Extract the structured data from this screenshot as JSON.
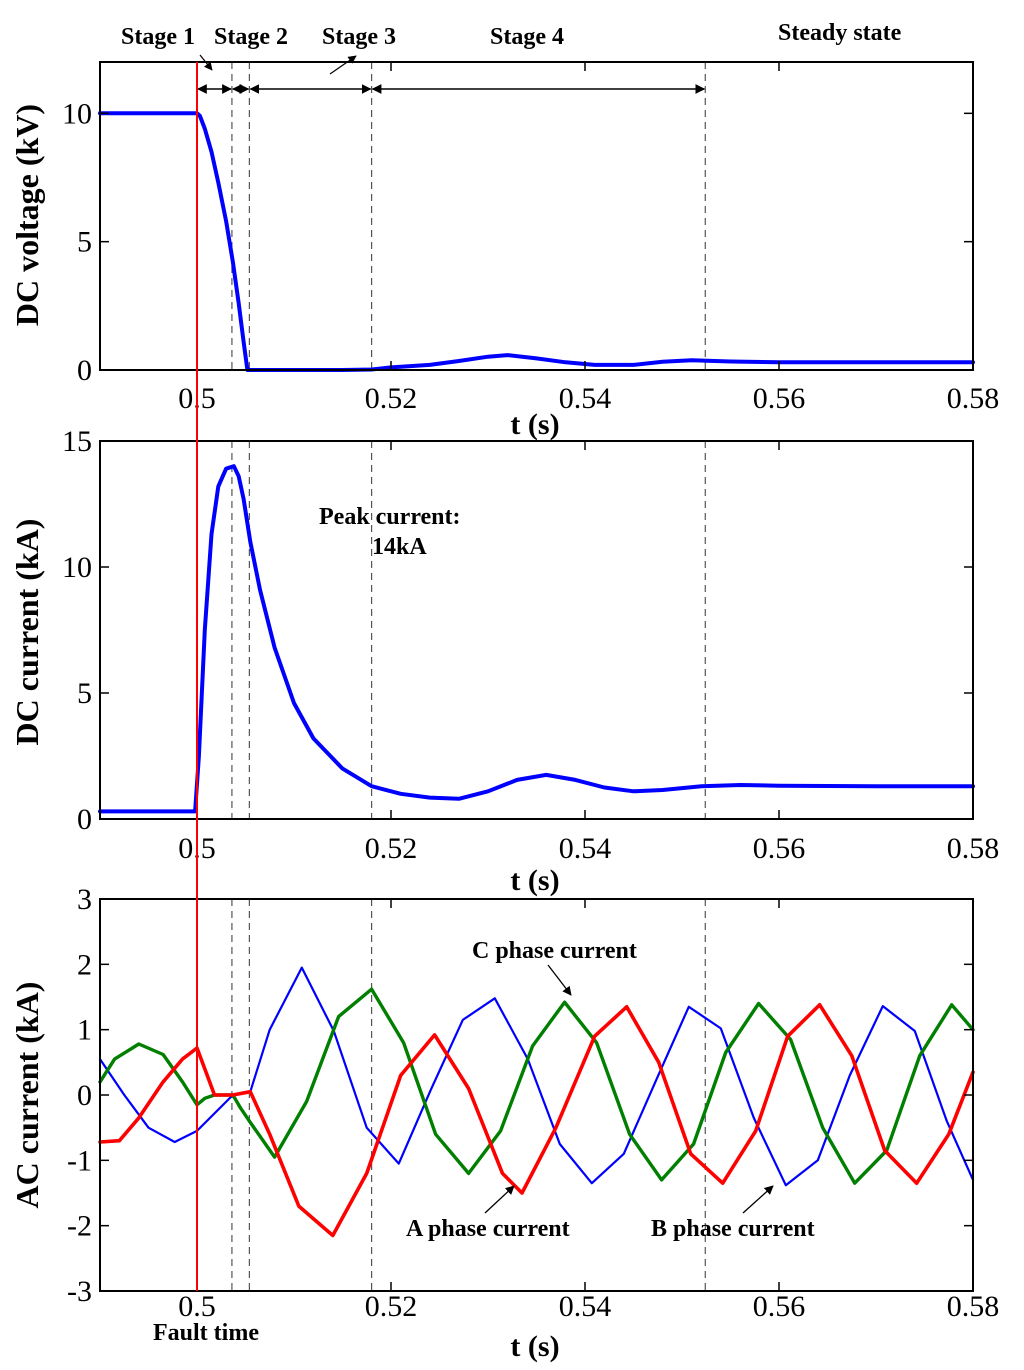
{
  "chart_data": [
    {
      "type": "line",
      "id": "dc-voltage",
      "ylabel": "DC voltage (kV)",
      "xlabel": "t (s)",
      "xlim": [
        0.49,
        0.58
      ],
      "ylim": [
        0,
        12
      ],
      "xticks": [
        0.5,
        0.52,
        0.54,
        0.56,
        0.58
      ],
      "yticks": [
        0,
        5,
        10
      ],
      "xtick_labels": [
        "0.5",
        "0.52",
        "0.54",
        "0.56",
        "0.58"
      ],
      "ytick_labels": [
        "0",
        "5",
        "10"
      ],
      "series": [
        {
          "name": "DC voltage",
          "color": "#0000FF",
          "x": [
            0.49,
            0.5,
            0.5003,
            0.5008,
            0.5015,
            0.5022,
            0.503,
            0.5037,
            0.5043,
            0.5048,
            0.5052,
            0.507,
            0.515,
            0.518,
            0.52,
            0.524,
            0.527,
            0.53,
            0.532,
            0.535,
            0.538,
            0.541,
            0.545,
            0.548,
            0.551,
            0.555,
            0.56,
            0.57,
            0.58
          ],
          "y": [
            10,
            10,
            9.9,
            9.4,
            8.5,
            7.3,
            5.8,
            4.2,
            2.6,
            1.1,
            0,
            0,
            0,
            0.02,
            0.1,
            0.2,
            0.35,
            0.52,
            0.58,
            0.45,
            0.3,
            0.2,
            0.2,
            0.32,
            0.38,
            0.33,
            0.3,
            0.3,
            0.3
          ]
        }
      ],
      "vlines_dashed": [
        0.5036,
        0.5054,
        0.518,
        0.5524
      ],
      "vline_fault": 0.5,
      "stage_arrows": [
        [
          0.5,
          0.5036
        ],
        [
          0.5036,
          0.5054
        ],
        [
          0.5054,
          0.518
        ],
        [
          0.518,
          0.5524
        ]
      ],
      "annotations": [
        "Stage 1",
        "Stage 2",
        "Stage 3",
        "Stage 4",
        "Steady state"
      ]
    },
    {
      "type": "line",
      "id": "dc-current",
      "ylabel": "DC current (kA)",
      "xlabel": "t (s)",
      "xlim": [
        0.49,
        0.58
      ],
      "ylim": [
        0,
        15
      ],
      "xticks": [
        0.5,
        0.52,
        0.54,
        0.56,
        0.58
      ],
      "yticks": [
        0,
        5,
        10,
        15
      ],
      "xtick_labels": [
        "0.5",
        "0.52",
        "0.54",
        "0.56",
        "0.58"
      ],
      "ytick_labels": [
        "0",
        "5",
        "10",
        "15"
      ],
      "series": [
        {
          "name": "DC current",
          "color": "#0000FF",
          "x": [
            0.49,
            0.4998,
            0.5002,
            0.5008,
            0.5015,
            0.5022,
            0.503,
            0.5038,
            0.5043,
            0.5048,
            0.5055,
            0.5065,
            0.508,
            0.51,
            0.512,
            0.515,
            0.518,
            0.521,
            0.524,
            0.527,
            0.53,
            0.533,
            0.536,
            0.539,
            0.542,
            0.545,
            0.548,
            0.552,
            0.556,
            0.56,
            0.57,
            0.58
          ],
          "y": [
            0.3,
            0.3,
            2.5,
            7.5,
            11.3,
            13.2,
            13.9,
            14.0,
            13.6,
            12.7,
            11.0,
            9.1,
            6.8,
            4.6,
            3.2,
            2.0,
            1.3,
            1.0,
            0.85,
            0.8,
            1.1,
            1.55,
            1.75,
            1.55,
            1.25,
            1.1,
            1.15,
            1.3,
            1.35,
            1.32,
            1.3,
            1.3
          ]
        }
      ],
      "vlines_dashed": [
        0.5036,
        0.5054,
        0.518,
        0.5524
      ],
      "vline_fault": 0.5,
      "annotations": [
        "Peak current:",
        "14kA"
      ]
    },
    {
      "type": "line",
      "id": "ac-current",
      "ylabel": "AC current (kA)",
      "xlabel": "t (s)",
      "xlim": [
        0.49,
        0.58
      ],
      "ylim": [
        -3,
        3
      ],
      "xticks": [
        0.5,
        0.52,
        0.54,
        0.56,
        0.58
      ],
      "yticks": [
        -3,
        -2,
        -1,
        0,
        1,
        2,
        3
      ],
      "xtick_labels": [
        "0.5",
        "0.52",
        "0.54",
        "0.56",
        "0.58"
      ],
      "ytick_labels": [
        "-3",
        "-2",
        "-1",
        "0",
        "1",
        "2",
        "3"
      ],
      "series": [
        {
          "name": "B phase current",
          "color": "#0000FF",
          "x": [
            0.49,
            0.4925,
            0.495,
            0.4977,
            0.5,
            0.5037,
            0.5055,
            0.5075,
            0.5108,
            0.5141,
            0.5175,
            0.5208,
            0.5241,
            0.5274,
            0.5307,
            0.5341,
            0.5374,
            0.5407,
            0.544,
            0.5474,
            0.5507,
            0.554,
            0.5574,
            0.5607,
            0.564,
            0.5673,
            0.5707,
            0.574,
            0.5773,
            0.58
          ],
          "y": [
            0.55,
            0.0,
            -0.5,
            -0.72,
            -0.55,
            0.0,
            0.05,
            1.0,
            1.95,
            0.98,
            -0.5,
            -1.05,
            0.08,
            1.15,
            1.48,
            0.55,
            -0.75,
            -1.35,
            -0.9,
            0.25,
            1.35,
            1.02,
            -0.35,
            -1.38,
            -1.0,
            0.3,
            1.36,
            0.98,
            -0.4,
            -1.3
          ]
        },
        {
          "name": "C phase current",
          "color": "#007F00",
          "x": [
            0.49,
            0.4915,
            0.494,
            0.4965,
            0.4985,
            0.5,
            0.5008,
            0.5018,
            0.5037,
            0.5045,
            0.5055,
            0.508,
            0.5113,
            0.5146,
            0.518,
            0.5213,
            0.5246,
            0.528,
            0.5313,
            0.5346,
            0.5379,
            0.5412,
            0.5446,
            0.5479,
            0.5512,
            0.5545,
            0.5579,
            0.5612,
            0.5645,
            0.5678,
            0.5711,
            0.5745,
            0.5778,
            0.58
          ],
          "y": [
            0.2,
            0.55,
            0.78,
            0.62,
            0.2,
            -0.15,
            -0.05,
            0.0,
            0.0,
            -0.2,
            -0.42,
            -0.95,
            -0.1,
            1.2,
            1.62,
            0.8,
            -0.6,
            -1.2,
            -0.55,
            0.75,
            1.42,
            0.8,
            -0.6,
            -1.3,
            -0.75,
            0.65,
            1.4,
            0.85,
            -0.5,
            -1.35,
            -0.85,
            0.6,
            1.38,
            1.0
          ]
        },
        {
          "name": "A phase current",
          "color": "#FF0000",
          "x": [
            0.49,
            0.492,
            0.494,
            0.4965,
            0.4985,
            0.5,
            0.5008,
            0.5018,
            0.5037,
            0.5055,
            0.5075,
            0.5105,
            0.514,
            0.5175,
            0.521,
            0.5245,
            0.528,
            0.5315,
            0.5335,
            0.537,
            0.541,
            0.5443,
            0.5476,
            0.5509,
            0.5542,
            0.5576,
            0.5609,
            0.5642,
            0.5675,
            0.5709,
            0.5742,
            0.5775,
            0.58
          ],
          "y": [
            -0.72,
            -0.7,
            -0.35,
            0.2,
            0.55,
            0.72,
            0.4,
            0.0,
            0.0,
            0.05,
            -0.6,
            -1.7,
            -2.15,
            -1.2,
            0.3,
            0.92,
            0.1,
            -1.2,
            -1.5,
            -0.5,
            0.9,
            1.35,
            0.5,
            -0.9,
            -1.35,
            -0.55,
            0.9,
            1.38,
            0.6,
            -0.85,
            -1.35,
            -0.6,
            0.35
          ]
        }
      ],
      "vlines_dashed": [
        0.5036,
        0.5054,
        0.518,
        0.5524
      ],
      "vline_fault": 0.5,
      "annotations": [
        "C phase current",
        "A phase current",
        "B phase current",
        "Fault time"
      ]
    }
  ]
}
